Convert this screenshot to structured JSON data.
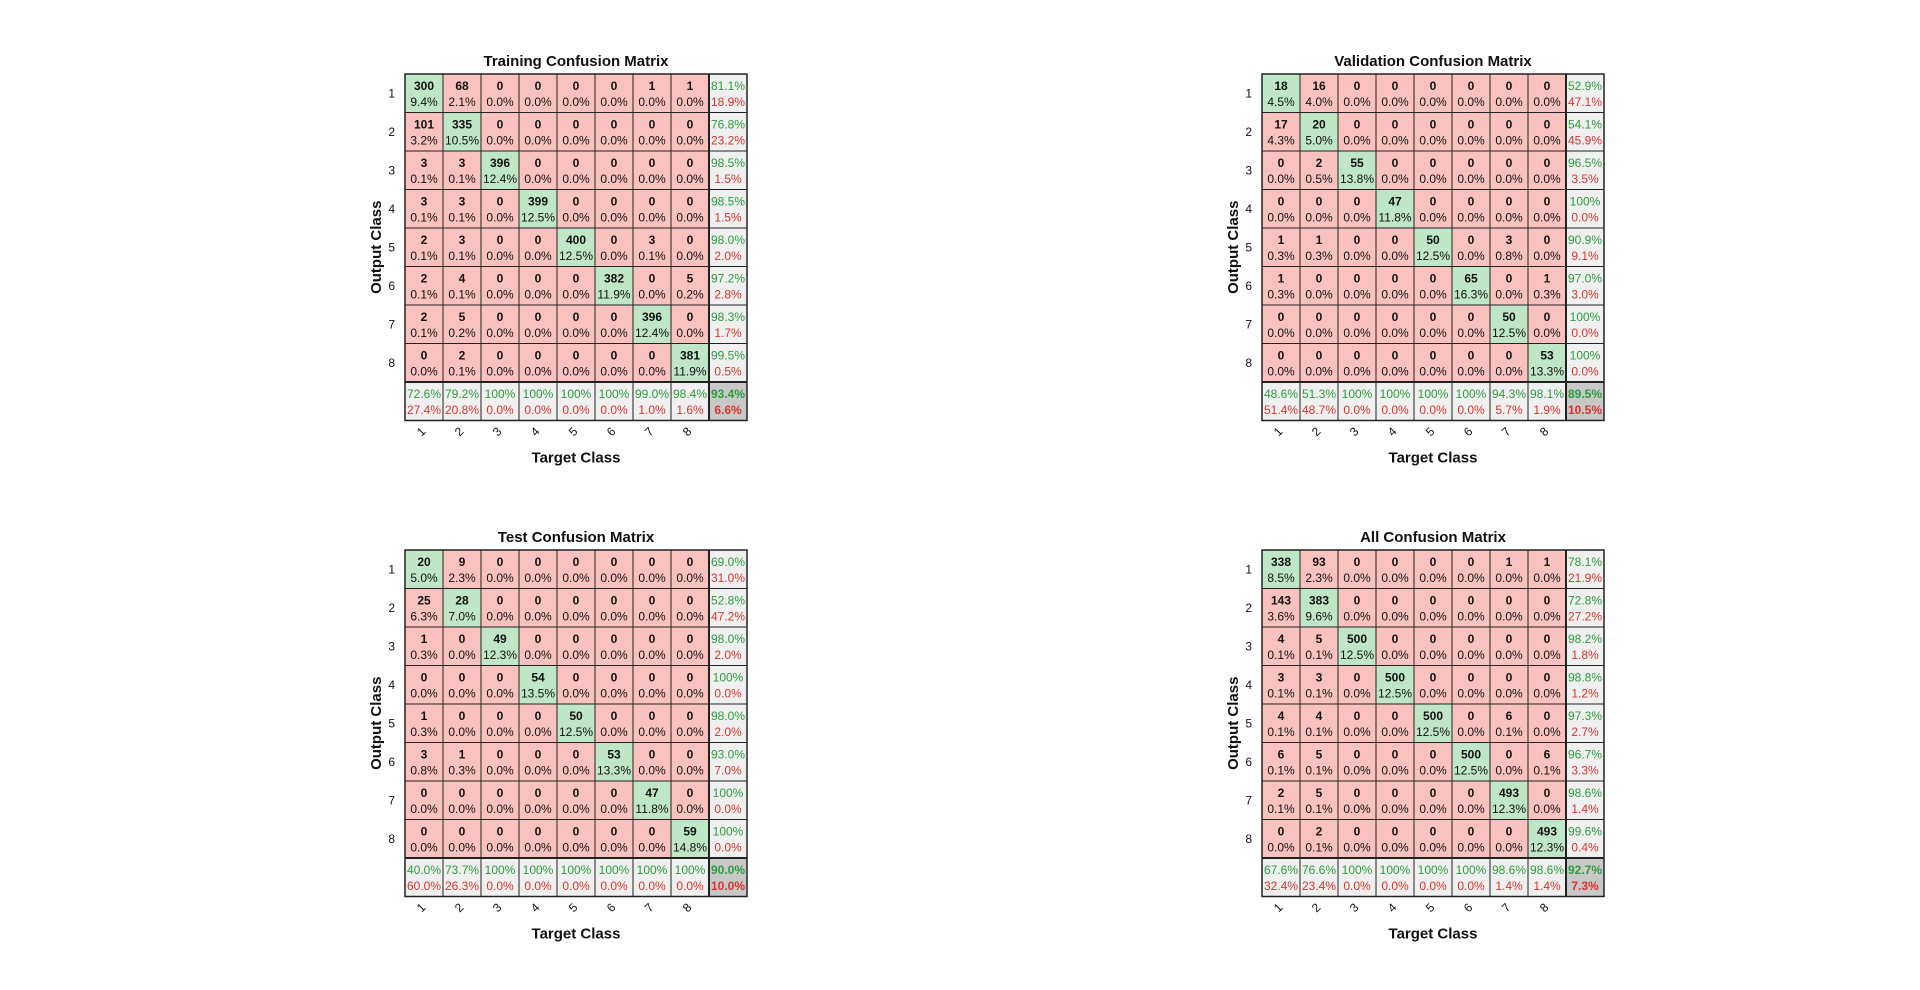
{
  "colors": {
    "correct_fill": "#bfe6c6",
    "incorrect_fill": "#f9c2be",
    "summary_fill": "#f0f0f0",
    "total_fill": "#c8c8c8",
    "pct_good": "#2a9d3a",
    "pct_bad": "#d9342b",
    "grid": "#222222",
    "text": "#111111"
  },
  "chart_data": [
    {
      "type": "heatmap",
      "title": "Training Confusion Matrix",
      "xlabel": "Target Class",
      "ylabel": "Output Class",
      "row_labels": [
        "1",
        "2",
        "3",
        "4",
        "5",
        "6",
        "7",
        "8"
      ],
      "col_labels": [
        "1",
        "2",
        "3",
        "4",
        "5",
        "6",
        "7",
        "8"
      ],
      "counts": [
        [
          300,
          68,
          0,
          0,
          0,
          0,
          1,
          1
        ],
        [
          101,
          335,
          0,
          0,
          0,
          0,
          0,
          0
        ],
        [
          3,
          3,
          396,
          0,
          0,
          0,
          0,
          0
        ],
        [
          3,
          3,
          0,
          399,
          0,
          0,
          0,
          0
        ],
        [
          2,
          3,
          0,
          0,
          400,
          0,
          3,
          0
        ],
        [
          2,
          4,
          0,
          0,
          0,
          382,
          0,
          5
        ],
        [
          2,
          5,
          0,
          0,
          0,
          0,
          396,
          0
        ],
        [
          0,
          2,
          0,
          0,
          0,
          0,
          0,
          381
        ]
      ],
      "cell_pct": [
        [
          "9.4%",
          "2.1%",
          "0.0%",
          "0.0%",
          "0.0%",
          "0.0%",
          "0.0%",
          "0.0%"
        ],
        [
          "3.2%",
          "10.5%",
          "0.0%",
          "0.0%",
          "0.0%",
          "0.0%",
          "0.0%",
          "0.0%"
        ],
        [
          "0.1%",
          "0.1%",
          "12.4%",
          "0.0%",
          "0.0%",
          "0.0%",
          "0.0%",
          "0.0%"
        ],
        [
          "0.1%",
          "0.1%",
          "0.0%",
          "12.5%",
          "0.0%",
          "0.0%",
          "0.0%",
          "0.0%"
        ],
        [
          "0.1%",
          "0.1%",
          "0.0%",
          "0.0%",
          "12.5%",
          "0.0%",
          "0.1%",
          "0.0%"
        ],
        [
          "0.1%",
          "0.1%",
          "0.0%",
          "0.0%",
          "0.0%",
          "11.9%",
          "0.0%",
          "0.2%"
        ],
        [
          "0.1%",
          "0.2%",
          "0.0%",
          "0.0%",
          "0.0%",
          "0.0%",
          "12.4%",
          "0.0%"
        ],
        [
          "0.0%",
          "0.1%",
          "0.0%",
          "0.0%",
          "0.0%",
          "0.0%",
          "0.0%",
          "11.9%"
        ]
      ],
      "row_summary": [
        [
          "81.1%",
          "18.9%"
        ],
        [
          "76.8%",
          "23.2%"
        ],
        [
          "98.5%",
          "1.5%"
        ],
        [
          "98.5%",
          "1.5%"
        ],
        [
          "98.0%",
          "2.0%"
        ],
        [
          "97.2%",
          "2.8%"
        ],
        [
          "98.3%",
          "1.7%"
        ],
        [
          "99.5%",
          "0.5%"
        ]
      ],
      "col_summary": [
        [
          "72.6%",
          "27.4%"
        ],
        [
          "79.2%",
          "20.8%"
        ],
        [
          "100%",
          "0.0%"
        ],
        [
          "100%",
          "0.0%"
        ],
        [
          "100%",
          "0.0%"
        ],
        [
          "100%",
          "0.0%"
        ],
        [
          "99.0%",
          "1.0%"
        ],
        [
          "98.4%",
          "1.6%"
        ]
      ],
      "total": [
        "93.4%",
        "6.6%"
      ]
    },
    {
      "type": "heatmap",
      "title": "Validation Confusion Matrix",
      "xlabel": "Target Class",
      "ylabel": "Output Class",
      "row_labels": [
        "1",
        "2",
        "3",
        "4",
        "5",
        "6",
        "7",
        "8"
      ],
      "col_labels": [
        "1",
        "2",
        "3",
        "4",
        "5",
        "6",
        "7",
        "8"
      ],
      "counts": [
        [
          18,
          16,
          0,
          0,
          0,
          0,
          0,
          0
        ],
        [
          17,
          20,
          0,
          0,
          0,
          0,
          0,
          0
        ],
        [
          0,
          2,
          55,
          0,
          0,
          0,
          0,
          0
        ],
        [
          0,
          0,
          0,
          47,
          0,
          0,
          0,
          0
        ],
        [
          1,
          1,
          0,
          0,
          50,
          0,
          3,
          0
        ],
        [
          1,
          0,
          0,
          0,
          0,
          65,
          0,
          1
        ],
        [
          0,
          0,
          0,
          0,
          0,
          0,
          50,
          0
        ],
        [
          0,
          0,
          0,
          0,
          0,
          0,
          0,
          53
        ]
      ],
      "cell_pct": [
        [
          "4.5%",
          "4.0%",
          "0.0%",
          "0.0%",
          "0.0%",
          "0.0%",
          "0.0%",
          "0.0%"
        ],
        [
          "4.3%",
          "5.0%",
          "0.0%",
          "0.0%",
          "0.0%",
          "0.0%",
          "0.0%",
          "0.0%"
        ],
        [
          "0.0%",
          "0.5%",
          "13.8%",
          "0.0%",
          "0.0%",
          "0.0%",
          "0.0%",
          "0.0%"
        ],
        [
          "0.0%",
          "0.0%",
          "0.0%",
          "11.8%",
          "0.0%",
          "0.0%",
          "0.0%",
          "0.0%"
        ],
        [
          "0.3%",
          "0.3%",
          "0.0%",
          "0.0%",
          "12.5%",
          "0.0%",
          "0.8%",
          "0.0%"
        ],
        [
          "0.3%",
          "0.0%",
          "0.0%",
          "0.0%",
          "0.0%",
          "16.3%",
          "0.0%",
          "0.3%"
        ],
        [
          "0.0%",
          "0.0%",
          "0.0%",
          "0.0%",
          "0.0%",
          "0.0%",
          "12.5%",
          "0.0%"
        ],
        [
          "0.0%",
          "0.0%",
          "0.0%",
          "0.0%",
          "0.0%",
          "0.0%",
          "0.0%",
          "13.3%"
        ]
      ],
      "row_summary": [
        [
          "52.9%",
          "47.1%"
        ],
        [
          "54.1%",
          "45.9%"
        ],
        [
          "96.5%",
          "3.5%"
        ],
        [
          "100%",
          "0.0%"
        ],
        [
          "90.9%",
          "9.1%"
        ],
        [
          "97.0%",
          "3.0%"
        ],
        [
          "100%",
          "0.0%"
        ],
        [
          "100%",
          "0.0%"
        ]
      ],
      "col_summary": [
        [
          "48.6%",
          "51.4%"
        ],
        [
          "51.3%",
          "48.7%"
        ],
        [
          "100%",
          "0.0%"
        ],
        [
          "100%",
          "0.0%"
        ],
        [
          "100%",
          "0.0%"
        ],
        [
          "100%",
          "0.0%"
        ],
        [
          "94.3%",
          "5.7%"
        ],
        [
          "98.1%",
          "1.9%"
        ]
      ],
      "total": [
        "89.5%",
        "10.5%"
      ]
    },
    {
      "type": "heatmap",
      "title": "Test Confusion Matrix",
      "xlabel": "Target Class",
      "ylabel": "Output Class",
      "row_labels": [
        "1",
        "2",
        "3",
        "4",
        "5",
        "6",
        "7",
        "8"
      ],
      "col_labels": [
        "1",
        "2",
        "3",
        "4",
        "5",
        "6",
        "7",
        "8"
      ],
      "counts": [
        [
          20,
          9,
          0,
          0,
          0,
          0,
          0,
          0
        ],
        [
          25,
          28,
          0,
          0,
          0,
          0,
          0,
          0
        ],
        [
          1,
          0,
          49,
          0,
          0,
          0,
          0,
          0
        ],
        [
          0,
          0,
          0,
          54,
          0,
          0,
          0,
          0
        ],
        [
          1,
          0,
          0,
          0,
          50,
          0,
          0,
          0
        ],
        [
          3,
          1,
          0,
          0,
          0,
          53,
          0,
          0
        ],
        [
          0,
          0,
          0,
          0,
          0,
          0,
          47,
          0
        ],
        [
          0,
          0,
          0,
          0,
          0,
          0,
          0,
          59
        ]
      ],
      "cell_pct": [
        [
          "5.0%",
          "2.3%",
          "0.0%",
          "0.0%",
          "0.0%",
          "0.0%",
          "0.0%",
          "0.0%"
        ],
        [
          "6.3%",
          "7.0%",
          "0.0%",
          "0.0%",
          "0.0%",
          "0.0%",
          "0.0%",
          "0.0%"
        ],
        [
          "0.3%",
          "0.0%",
          "12.3%",
          "0.0%",
          "0.0%",
          "0.0%",
          "0.0%",
          "0.0%"
        ],
        [
          "0.0%",
          "0.0%",
          "0.0%",
          "13.5%",
          "0.0%",
          "0.0%",
          "0.0%",
          "0.0%"
        ],
        [
          "0.3%",
          "0.0%",
          "0.0%",
          "0.0%",
          "12.5%",
          "0.0%",
          "0.0%",
          "0.0%"
        ],
        [
          "0.8%",
          "0.3%",
          "0.0%",
          "0.0%",
          "0.0%",
          "13.3%",
          "0.0%",
          "0.0%"
        ],
        [
          "0.0%",
          "0.0%",
          "0.0%",
          "0.0%",
          "0.0%",
          "0.0%",
          "11.8%",
          "0.0%"
        ],
        [
          "0.0%",
          "0.0%",
          "0.0%",
          "0.0%",
          "0.0%",
          "0.0%",
          "0.0%",
          "14.8%"
        ]
      ],
      "row_summary": [
        [
          "69.0%",
          "31.0%"
        ],
        [
          "52.8%",
          "47.2%"
        ],
        [
          "98.0%",
          "2.0%"
        ],
        [
          "100%",
          "0.0%"
        ],
        [
          "98.0%",
          "2.0%"
        ],
        [
          "93.0%",
          "7.0%"
        ],
        [
          "100%",
          "0.0%"
        ],
        [
          "100%",
          "0.0%"
        ]
      ],
      "col_summary": [
        [
          "40.0%",
          "60.0%"
        ],
        [
          "73.7%",
          "26.3%"
        ],
        [
          "100%",
          "0.0%"
        ],
        [
          "100%",
          "0.0%"
        ],
        [
          "100%",
          "0.0%"
        ],
        [
          "100%",
          "0.0%"
        ],
        [
          "100%",
          "0.0%"
        ],
        [
          "100%",
          "0.0%"
        ]
      ],
      "total": [
        "90.0%",
        "10.0%"
      ]
    },
    {
      "type": "heatmap",
      "title": "All Confusion Matrix",
      "xlabel": "Target Class",
      "ylabel": "Output Class",
      "row_labels": [
        "1",
        "2",
        "3",
        "4",
        "5",
        "6",
        "7",
        "8"
      ],
      "col_labels": [
        "1",
        "2",
        "3",
        "4",
        "5",
        "6",
        "7",
        "8"
      ],
      "counts": [
        [
          338,
          93,
          0,
          0,
          0,
          0,
          1,
          1
        ],
        [
          143,
          383,
          0,
          0,
          0,
          0,
          0,
          0
        ],
        [
          4,
          5,
          500,
          0,
          0,
          0,
          0,
          0
        ],
        [
          3,
          3,
          0,
          500,
          0,
          0,
          0,
          0
        ],
        [
          4,
          4,
          0,
          0,
          500,
          0,
          6,
          0
        ],
        [
          6,
          5,
          0,
          0,
          0,
          500,
          0,
          6
        ],
        [
          2,
          5,
          0,
          0,
          0,
          0,
          493,
          0
        ],
        [
          0,
          2,
          0,
          0,
          0,
          0,
          0,
          493
        ]
      ],
      "cell_pct": [
        [
          "8.5%",
          "2.3%",
          "0.0%",
          "0.0%",
          "0.0%",
          "0.0%",
          "0.0%",
          "0.0%"
        ],
        [
          "3.6%",
          "9.6%",
          "0.0%",
          "0.0%",
          "0.0%",
          "0.0%",
          "0.0%",
          "0.0%"
        ],
        [
          "0.1%",
          "0.1%",
          "12.5%",
          "0.0%",
          "0.0%",
          "0.0%",
          "0.0%",
          "0.0%"
        ],
        [
          "0.1%",
          "0.1%",
          "0.0%",
          "12.5%",
          "0.0%",
          "0.0%",
          "0.0%",
          "0.0%"
        ],
        [
          "0.1%",
          "0.1%",
          "0.0%",
          "0.0%",
          "12.5%",
          "0.0%",
          "0.1%",
          "0.0%"
        ],
        [
          "0.1%",
          "0.1%",
          "0.0%",
          "0.0%",
          "0.0%",
          "12.5%",
          "0.0%",
          "0.1%"
        ],
        [
          "0.1%",
          "0.1%",
          "0.0%",
          "0.0%",
          "0.0%",
          "0.0%",
          "12.3%",
          "0.0%"
        ],
        [
          "0.0%",
          "0.1%",
          "0.0%",
          "0.0%",
          "0.0%",
          "0.0%",
          "0.0%",
          "12.3%"
        ]
      ],
      "row_summary": [
        [
          "78.1%",
          "21.9%"
        ],
        [
          "72.8%",
          "27.2%"
        ],
        [
          "98.2%",
          "1.8%"
        ],
        [
          "98.8%",
          "1.2%"
        ],
        [
          "97.3%",
          "2.7%"
        ],
        [
          "96.7%",
          "3.3%"
        ],
        [
          "98.6%",
          "1.4%"
        ],
        [
          "99.6%",
          "0.4%"
        ]
      ],
      "col_summary": [
        [
          "67.6%",
          "32.4%"
        ],
        [
          "76.6%",
          "23.4%"
        ],
        [
          "100%",
          "0.0%"
        ],
        [
          "100%",
          "0.0%"
        ],
        [
          "100%",
          "0.0%"
        ],
        [
          "100%",
          "0.0%"
        ],
        [
          "98.6%",
          "1.4%"
        ],
        [
          "98.6%",
          "1.4%"
        ]
      ],
      "total": [
        "92.7%",
        "7.3%"
      ]
    }
  ]
}
